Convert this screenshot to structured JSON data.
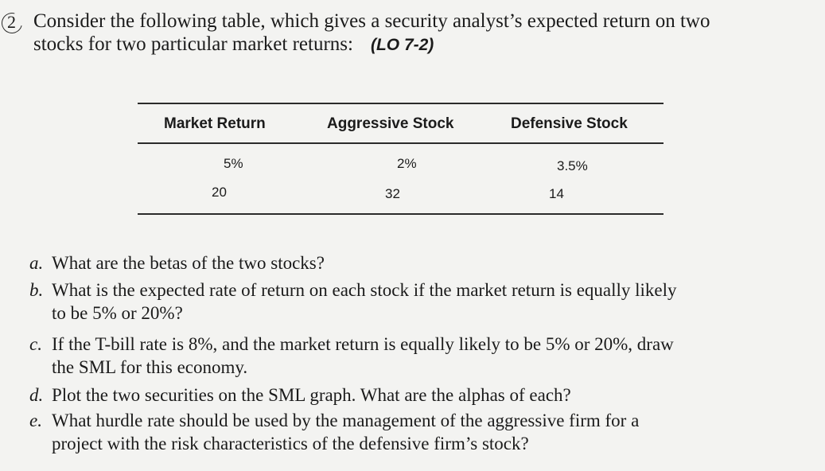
{
  "question": {
    "number": "2",
    "intro_line1": "Consider the following table, which gives a security analyst’s expected return on two",
    "intro_line2": "stocks for two particular market returns:",
    "lo": "(LO 7-2)"
  },
  "table": {
    "headers": [
      "Market Return",
      "Aggressive Stock",
      "Defensive Stock"
    ],
    "rows": [
      [
        "5%",
        "2%",
        "3.5%"
      ],
      [
        "20",
        "32",
        "14"
      ]
    ]
  },
  "parts": [
    {
      "letter": "a.",
      "line1": "What are the betas of the two stocks?",
      "line2": ""
    },
    {
      "letter": "b.",
      "line1": "What is the expected rate of return on each stock if the market return is equally likely",
      "line2": "to be 5% or 20%?"
    },
    {
      "letter": "c.",
      "line1": "If the T-bill rate is 8%, and the market return is equally likely to be 5% or 20%, draw",
      "line2": "the SML for this economy."
    },
    {
      "letter": "d.",
      "line1": "Plot the two securities on the SML graph. What are the alphas of each?",
      "line2": ""
    },
    {
      "letter": "e.",
      "line1": "What hurdle rate should be used by the management of the aggressive firm for a",
      "line2": "project with the risk characteristics of the defensive firm’s stock?"
    }
  ]
}
